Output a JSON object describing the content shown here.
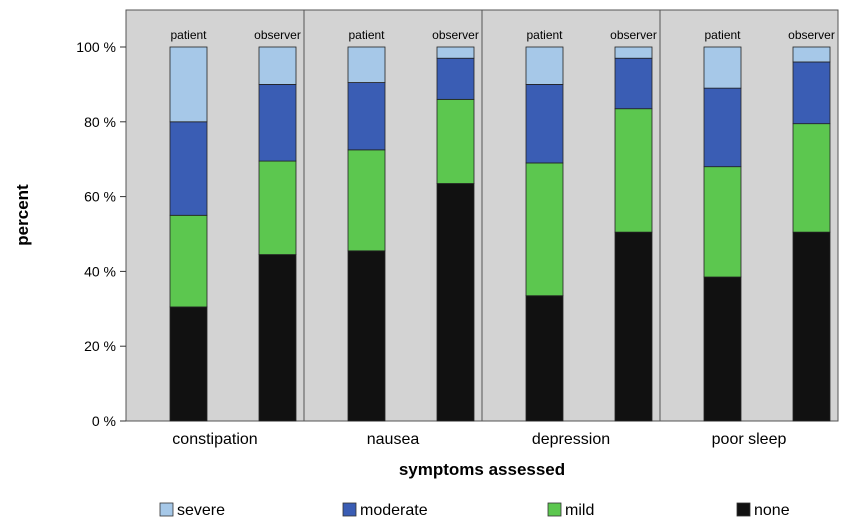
{
  "chart_data": {
    "type": "bar",
    "stacked": true,
    "title": "",
    "xlabel": "symptoms assessed",
    "ylabel": "percent",
    "ylim": [
      0,
      100
    ],
    "yticks": [
      "0 %",
      "20 %",
      "40 %",
      "60 %",
      "80 %",
      "100 %"
    ],
    "ytick_values": [
      0,
      20,
      40,
      60,
      80,
      100
    ],
    "groups": [
      "constipation",
      "nausea",
      "depression",
      "poor sleep"
    ],
    "bar_labels": [
      "patient",
      "observer"
    ],
    "grid": false,
    "legend_position": "bottom",
    "colors": {
      "plot_background": "#d3d3d3",
      "severe": "#a6c8e8",
      "moderate": "#3a5db4",
      "mild": "#5cc74f",
      "none": "#111111"
    },
    "series": [
      {
        "name": "none",
        "values": [
          [
            30.5,
            44.5
          ],
          [
            45.5,
            63.5
          ],
          [
            33.5,
            50.5
          ],
          [
            38.5,
            50.5
          ]
        ]
      },
      {
        "name": "mild",
        "values": [
          [
            24.5,
            25
          ],
          [
            27,
            22.5
          ],
          [
            35.5,
            33
          ],
          [
            29.5,
            29
          ]
        ]
      },
      {
        "name": "moderate",
        "values": [
          [
            25,
            20.5
          ],
          [
            18,
            11
          ],
          [
            21,
            13.5
          ],
          [
            21,
            16.5
          ]
        ]
      },
      {
        "name": "severe",
        "values": [
          [
            20,
            10
          ],
          [
            9.5,
            3
          ],
          [
            10,
            3
          ],
          [
            11,
            4
          ]
        ]
      }
    ],
    "legend": [
      "severe",
      "moderate",
      "mild",
      "none"
    ]
  }
}
